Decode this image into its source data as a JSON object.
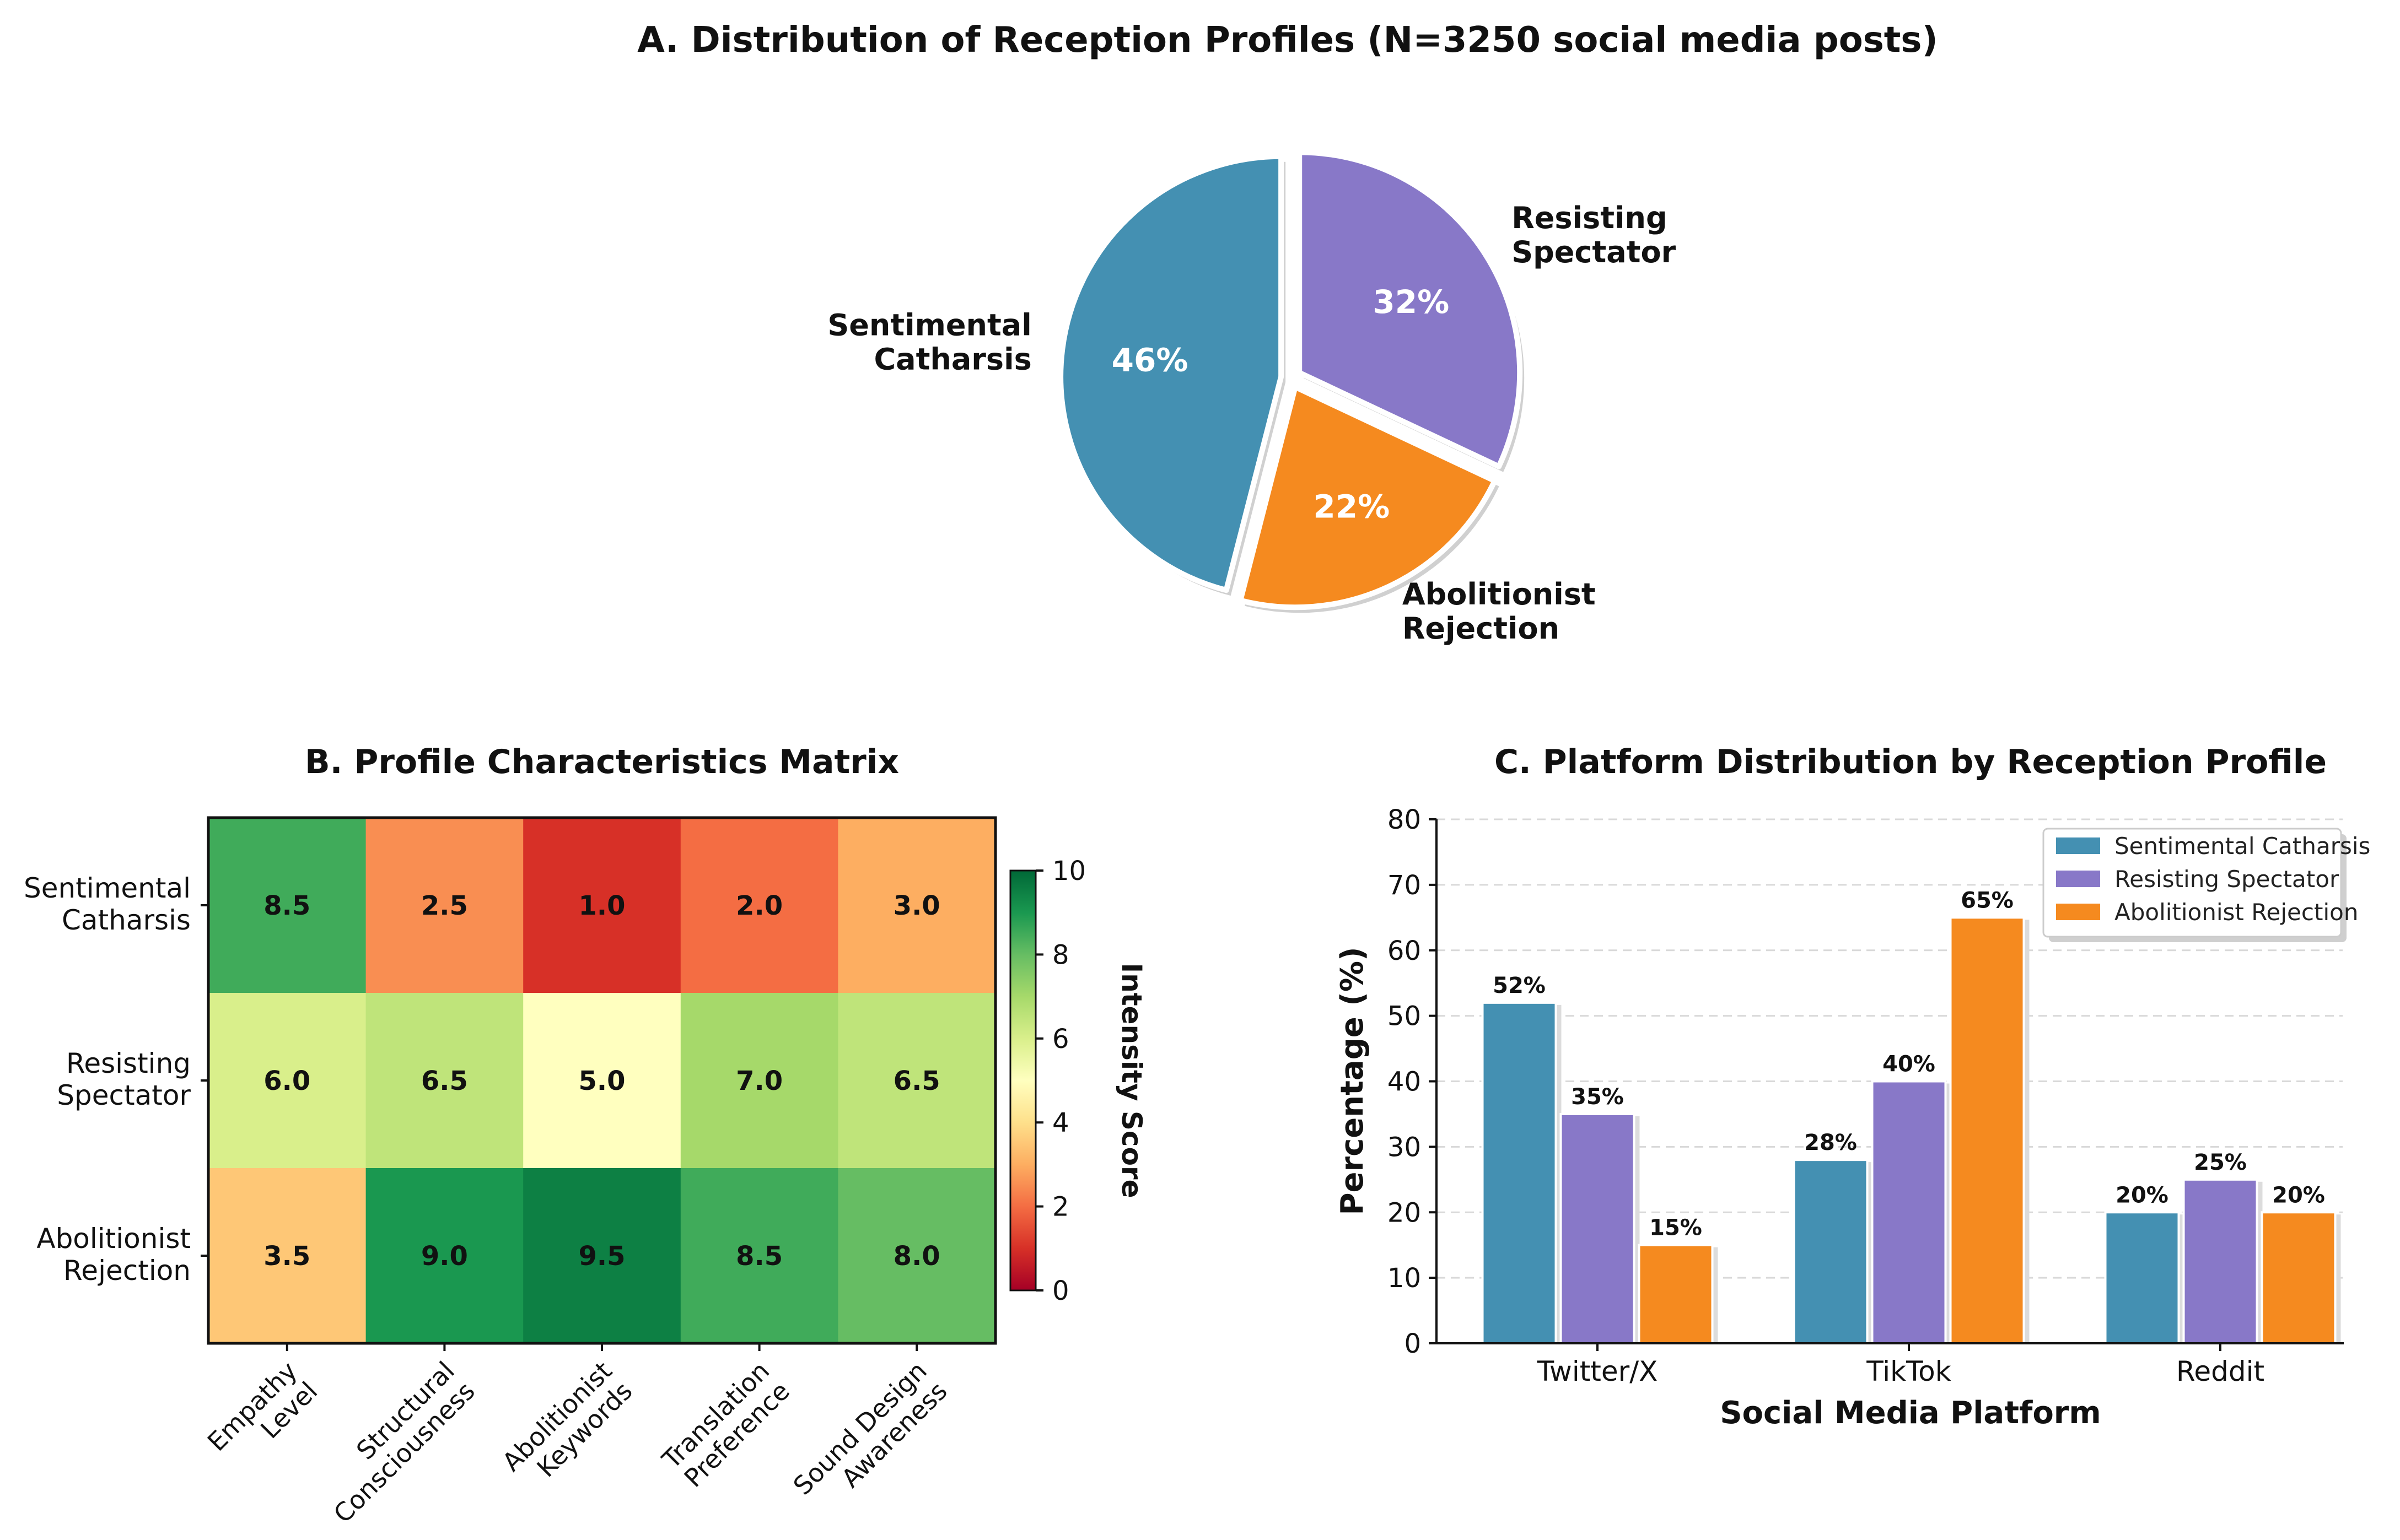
{
  "chart_data": [
    {
      "type": "pie",
      "title": "A. Distribution of Reception Profiles (N=3250 social media posts)",
      "labels": [
        "Sentimental\nCatharsis",
        "Abolitionist\nRejection",
        "Resisting\nSpectator"
      ],
      "pct_labels": [
        "46%",
        "22%",
        "32%"
      ],
      "values": [
        46,
        22,
        32
      ],
      "colors": [
        "#4490b2",
        "#f58a1f",
        "#8878c8"
      ]
    },
    {
      "type": "heatmap",
      "title": "B. Profile Characteristics Matrix",
      "rows": [
        "Sentimental\nCatharsis",
        "Resisting\nSpectator",
        "Abolitionist\nRejection"
      ],
      "cols": [
        "Empathy\nLevel",
        "Structural\nConsciousness",
        "Abolitionist\nKeywords",
        "Translation\nPreference",
        "Sound Design\nAwareness"
      ],
      "values": [
        [
          8.5,
          2.5,
          1.0,
          2.0,
          3.0
        ],
        [
          6.0,
          6.5,
          5.0,
          7.0,
          6.5
        ],
        [
          3.5,
          9.0,
          9.5,
          8.5,
          8.0
        ]
      ],
      "cell_labels": [
        [
          "8.5",
          "2.5",
          "1.0",
          "2.0",
          "3.0"
        ],
        [
          "6.0",
          "6.5",
          "5.0",
          "7.0",
          "6.5"
        ],
        [
          "3.5",
          "9.0",
          "9.5",
          "8.5",
          "8.0"
        ]
      ],
      "vmin": 0,
      "vmax": 10,
      "colorbar_label": "Intensity Score",
      "colorbar_ticks": [
        "0",
        "2",
        "4",
        "6",
        "8",
        "10"
      ],
      "colorbar_tick_values": [
        0,
        2,
        4,
        6,
        8,
        10
      ]
    },
    {
      "type": "bar",
      "title": "C. Platform Distribution by Reception Profile",
      "categories": [
        "Twitter/X",
        "TikTok",
        "Reddit"
      ],
      "series": [
        {
          "name": "Sentimental Catharsis",
          "values": [
            52,
            28,
            20
          ],
          "labels": [
            "52%",
            "28%",
            "20%"
          ],
          "color": "#4490b2"
        },
        {
          "name": "Resisting Spectator",
          "values": [
            35,
            40,
            25
          ],
          "labels": [
            "35%",
            "40%",
            "25%"
          ],
          "color": "#8878c8"
        },
        {
          "name": "Abolitionist Rejection",
          "values": [
            15,
            65,
            20
          ],
          "labels": [
            "15%",
            "65%",
            "20%"
          ],
          "color": "#f58a1f"
        }
      ],
      "xlabel": "Social Media Platform",
      "ylabel": "Percentage (%)",
      "ylim": [
        0,
        80
      ],
      "yticks": [
        "0",
        "10",
        "20",
        "30",
        "40",
        "50",
        "60",
        "70",
        "80"
      ],
      "ytick_values": [
        0,
        10,
        20,
        30,
        40,
        50,
        60,
        70,
        80
      ],
      "grid": "y-dashed",
      "legend": "top-right"
    }
  ]
}
